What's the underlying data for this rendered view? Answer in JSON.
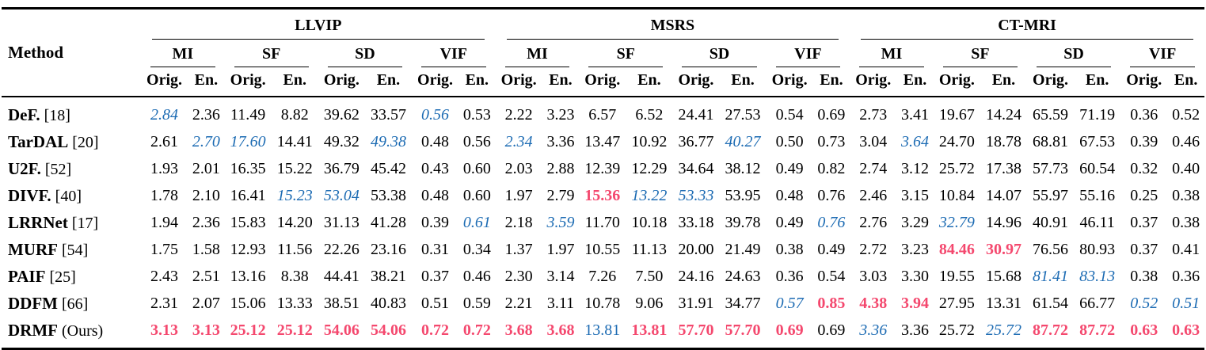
{
  "table": {
    "method_header": "Method",
    "datasets": [
      {
        "label": "LLVIP"
      },
      {
        "label": "MSRS"
      },
      {
        "label": "CT-MRI"
      }
    ],
    "metrics": [
      "MI",
      "SF",
      "SD",
      "VIF"
    ],
    "subcolumns": [
      "Orig.",
      "En."
    ],
    "colors": {
      "best": "#f4486e",
      "second": "#1c6bb3",
      "text": "#000000"
    },
    "style_legend": {
      "n": "normal black",
      "b": "best value (red bold)",
      "s": "second-best value (blue italic)",
      "u": "blue upright"
    },
    "rows": [
      {
        "method": "DeF.",
        "ref": "[18]",
        "cells": [
          "2.84|s",
          "2.36|n",
          "11.49|n",
          "8.82|n",
          "39.62|n",
          "33.57|n",
          "0.56|s",
          "0.53|n",
          "2.22|n",
          "3.23|n",
          "6.57|n",
          "6.52|n",
          "24.41|n",
          "27.53|n",
          "0.54|n",
          "0.69|n",
          "2.73|n",
          "3.41|n",
          "19.67|n",
          "14.24|n",
          "65.59|n",
          "71.19|n",
          "0.36|n",
          "0.52|n"
        ]
      },
      {
        "method": "TarDAL",
        "ref": "[20]",
        "cells": [
          "2.61|n",
          "2.70|s",
          "17.60|s",
          "14.41|n",
          "49.32|n",
          "49.38|s",
          "0.48|n",
          "0.56|n",
          "2.34|s",
          "3.36|n",
          "13.47|n",
          "10.92|n",
          "36.77|n",
          "40.27|s",
          "0.50|n",
          "0.73|n",
          "3.04|n",
          "3.64|s",
          "24.70|n",
          "18.78|n",
          "68.81|n",
          "67.53|n",
          "0.39|n",
          "0.46|n"
        ]
      },
      {
        "method": "U2F.",
        "ref": "[52]",
        "cells": [
          "1.93|n",
          "2.01|n",
          "16.35|n",
          "15.22|n",
          "36.79|n",
          "45.42|n",
          "0.43|n",
          "0.60|n",
          "2.03|n",
          "2.88|n",
          "12.39|n",
          "12.29|n",
          "34.64|n",
          "38.12|n",
          "0.49|n",
          "0.82|n",
          "2.74|n",
          "3.12|n",
          "25.72|n",
          "17.38|n",
          "57.73|n",
          "60.54|n",
          "0.32|n",
          "0.40|n"
        ]
      },
      {
        "method": "DIVF.",
        "ref": "[40]",
        "cells": [
          "1.78|n",
          "2.10|n",
          "16.41|n",
          "15.23|s",
          "53.04|s",
          "53.38|n",
          "0.48|n",
          "0.60|n",
          "1.97|n",
          "2.79|n",
          "15.36|b",
          "13.22|s",
          "53.33|s",
          "53.95|n",
          "0.48|n",
          "0.76|n",
          "2.46|n",
          "3.15|n",
          "10.84|n",
          "14.07|n",
          "55.97|n",
          "55.16|n",
          "0.25|n",
          "0.38|n"
        ]
      },
      {
        "method": "LRRNet",
        "ref": "[17]",
        "cells": [
          "1.94|n",
          "2.36|n",
          "15.83|n",
          "14.20|n",
          "31.13|n",
          "41.28|n",
          "0.39|n",
          "0.61|s",
          "2.18|n",
          "3.59|s",
          "11.70|n",
          "10.18|n",
          "33.18|n",
          "39.78|n",
          "0.49|n",
          "0.76|s",
          "2.76|n",
          "3.29|n",
          "32.79|s",
          "14.96|n",
          "40.91|n",
          "46.11|n",
          "0.37|n",
          "0.38|n"
        ]
      },
      {
        "method": "MURF",
        "ref": "[54]",
        "cells": [
          "1.75|n",
          "1.58|n",
          "12.93|n",
          "11.56|n",
          "22.26|n",
          "23.16|n",
          "0.31|n",
          "0.34|n",
          "1.37|n",
          "1.97|n",
          "10.55|n",
          "11.13|n",
          "20.00|n",
          "21.49|n",
          "0.38|n",
          "0.49|n",
          "2.72|n",
          "3.23|n",
          "84.46|b",
          "30.97|b",
          "76.56|n",
          "80.93|n",
          "0.37|n",
          "0.41|n"
        ]
      },
      {
        "method": "PAIF",
        "ref": "[25]",
        "cells": [
          "2.43|n",
          "2.51|n",
          "13.16|n",
          "8.38|n",
          "44.41|n",
          "38.21|n",
          "0.37|n",
          "0.46|n",
          "2.30|n",
          "3.14|n",
          "7.26|n",
          "7.50|n",
          "24.16|n",
          "24.63|n",
          "0.36|n",
          "0.54|n",
          "3.03|n",
          "3.30|n",
          "19.55|n",
          "15.68|n",
          "81.41|s",
          "83.13|s",
          "0.38|n",
          "0.36|n"
        ]
      },
      {
        "method": "DDFM",
        "ref": "[66]",
        "cells": [
          "2.31|n",
          "2.07|n",
          "15.06|n",
          "13.33|n",
          "38.51|n",
          "40.83|n",
          "0.51|n",
          "0.59|n",
          "2.21|n",
          "3.11|n",
          "10.78|n",
          "9.06|n",
          "31.91|n",
          "34.77|n",
          "0.57|s",
          "0.85|b",
          "4.38|b",
          "3.94|b",
          "27.95|n",
          "13.31|n",
          "61.54|n",
          "66.77|n",
          "0.52|s",
          "0.51|s"
        ]
      },
      {
        "method": "DRMF",
        "ref": "(Ours)",
        "cells": [
          "3.13|b",
          "3.13|b",
          "25.12|b",
          "25.12|b",
          "54.06|b",
          "54.06|b",
          "0.72|b",
          "0.72|b",
          "3.68|b",
          "3.68|b",
          "13.81|u",
          "13.81|b",
          "57.70|b",
          "57.70|b",
          "0.69|b",
          "0.69|n",
          "3.36|s",
          "3.36|n",
          "25.72|n",
          "25.72|s",
          "87.72|b",
          "87.72|b",
          "0.63|b",
          "0.63|b"
        ]
      }
    ]
  }
}
